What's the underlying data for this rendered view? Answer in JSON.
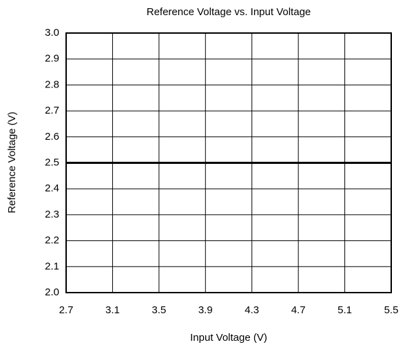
{
  "chart_data": {
    "type": "line",
    "title": "Reference Voltage vs. Input Voltage",
    "xlabel": "Input Voltage (V)",
    "ylabel": "Reference Voltage (V)",
    "x": [
      2.7,
      5.5
    ],
    "values": [
      2.5,
      2.5
    ],
    "color": "#000000",
    "xlim": [
      2.7,
      5.5
    ],
    "xticks": [
      2.7,
      3.1,
      3.5,
      3.9,
      4.3,
      4.7,
      5.1,
      5.5
    ],
    "ylim": [
      2.0,
      3.0
    ],
    "yticks": [
      {
        "value": 2.0,
        "label": "2.0"
      },
      2.1,
      2.2,
      2.3,
      2.4,
      2.5,
      2.6,
      2.7,
      2.8,
      2.9,
      {
        "value": 3.0,
        "label": "3.0"
      }
    ],
    "grid": true
  }
}
